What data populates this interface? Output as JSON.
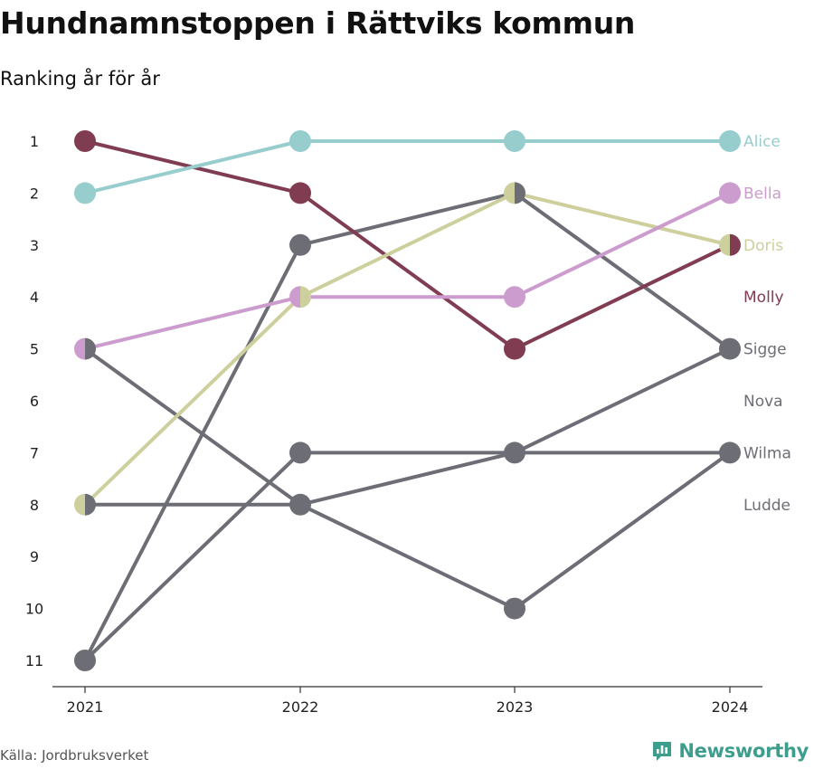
{
  "title": "Hundnamnstoppen i Rättviks kommun",
  "subtitle": "Ranking år för år",
  "source": "Källa: Jordbruksverket",
  "logo": {
    "text": "Newsworthy",
    "icon": "bar-chart-icon",
    "color": "#3d9e8e"
  },
  "chart_data": {
    "type": "line",
    "title": "Hundnamnstoppen i Rättviks kommun",
    "subtitle": "Ranking år för år",
    "x": [
      "2021",
      "2022",
      "2023",
      "2024"
    ],
    "y_ticks": [
      "1",
      "2",
      "3",
      "4",
      "5",
      "6",
      "7",
      "8",
      "9",
      "10",
      "11"
    ],
    "ylim": [
      1,
      11
    ],
    "y_reversed": true,
    "grid": false,
    "series": [
      {
        "name": "Alice",
        "color": "#97cdcc",
        "values": [
          2,
          1,
          1,
          1
        ]
      },
      {
        "name": "Bella",
        "color": "#cd9ccf",
        "values": [
          5,
          4,
          4,
          2
        ]
      },
      {
        "name": "Doris",
        "color": "#cdcf9c",
        "values": [
          8,
          4,
          2,
          3
        ]
      },
      {
        "name": "Molly",
        "color": "#803d52",
        "values": [
          1,
          2,
          5,
          3
        ]
      },
      {
        "name": "Sigge",
        "color": "#6d6d75",
        "values": [
          11,
          3,
          2,
          5
        ]
      },
      {
        "name": "Nova",
        "color": "#6d6d75",
        "values": [
          5,
          8,
          10,
          7
        ]
      },
      {
        "name": "Wilma",
        "color": "#6d6d75",
        "values": [
          11,
          7,
          7,
          7
        ]
      },
      {
        "name": "Ludde",
        "color": "#6d6d75",
        "values": [
          8,
          8,
          7,
          5
        ]
      }
    ],
    "end_labels": [
      {
        "text": "Alice",
        "rank": 1,
        "color": "#97cdcc"
      },
      {
        "text": "Bella",
        "rank": 2,
        "color": "#cd9ccf"
      },
      {
        "text": "Doris",
        "rank": 3,
        "color": "#cdcf9c"
      },
      {
        "text": "Molly",
        "rank": 4,
        "color": "#803d52"
      },
      {
        "text": "Sigge",
        "rank": 5,
        "color": "#6d6d75"
      },
      {
        "text": "Nova",
        "rank": 6,
        "color": "#6d6d75"
      },
      {
        "text": "Wilma",
        "rank": 7,
        "color": "#6d6d75"
      },
      {
        "text": "Ludde",
        "rank": 8,
        "color": "#6d6d75"
      }
    ]
  }
}
